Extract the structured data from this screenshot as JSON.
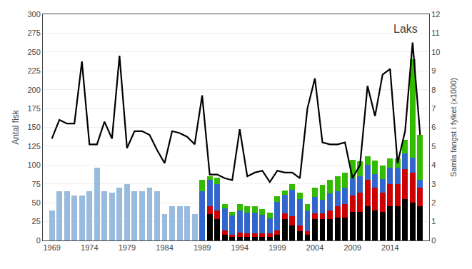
{
  "chart_data": {
    "type": "bar",
    "x": [
      1969,
      1970,
      1971,
      1972,
      1973,
      1974,
      1975,
      1976,
      1977,
      1978,
      1979,
      1980,
      1981,
      1982,
      1983,
      1984,
      1985,
      1986,
      1987,
      1988,
      1989,
      1990,
      1991,
      1992,
      1993,
      1994,
      1995,
      1996,
      1997,
      1998,
      1999,
      2000,
      2001,
      2002,
      2003,
      2004,
      2005,
      2006,
      2007,
      2008,
      2009,
      2010,
      2011,
      2012,
      2013,
      2014,
      2015,
      2016,
      2017,
      2018
    ],
    "series": [
      {
        "color": "#000000",
        "values": [
          0,
          0,
          0,
          0,
          0,
          0,
          0,
          0,
          0,
          0,
          0,
          0,
          0,
          0,
          0,
          0,
          0,
          0,
          0,
          0,
          0,
          35,
          28,
          8,
          5,
          5,
          5,
          5,
          5,
          5,
          8,
          28,
          20,
          12,
          8,
          28,
          28,
          28,
          30,
          30,
          38,
          38,
          45,
          40,
          38,
          45,
          45,
          55,
          50,
          45
        ]
      },
      {
        "color": "#cc0000",
        "values": [
          0,
          0,
          0,
          0,
          0,
          0,
          0,
          0,
          0,
          0,
          0,
          0,
          0,
          0,
          0,
          0,
          0,
          0,
          0,
          0,
          0,
          10,
          12,
          5,
          3,
          5,
          4,
          4,
          4,
          4,
          5,
          8,
          12,
          8,
          4,
          8,
          8,
          12,
          15,
          18,
          22,
          25,
          35,
          30,
          25,
          30,
          30,
          40,
          40,
          25
        ]
      },
      {
        "color": "#3366cc",
        "values": [
          0,
          0,
          0,
          0,
          0,
          0,
          0,
          0,
          0,
          0,
          0,
          0,
          0,
          0,
          0,
          0,
          0,
          0,
          0,
          0,
          65,
          35,
          35,
          30,
          25,
          30,
          28,
          28,
          25,
          20,
          38,
          25,
          35,
          35,
          28,
          22,
          18,
          22,
          20,
          22,
          22,
          22,
          20,
          18,
          18,
          22,
          22,
          20,
          20,
          10
        ]
      },
      {
        "color": "#99bbdd",
        "values": [
          40,
          65,
          65,
          60,
          60,
          65,
          97,
          65,
          63,
          70,
          75,
          65,
          65,
          70,
          65,
          35,
          45,
          45,
          45,
          35,
          0,
          0,
          0,
          0,
          0,
          0,
          0,
          0,
          0,
          0,
          0,
          0,
          0,
          0,
          0,
          0,
          0,
          0,
          0,
          0,
          0,
          0,
          0,
          0,
          0,
          0,
          0,
          0,
          0,
          0
        ]
      },
      {
        "color": "#33bb00",
        "values": [
          0,
          0,
          0,
          0,
          0,
          0,
          0,
          0,
          0,
          0,
          0,
          0,
          0,
          0,
          0,
          0,
          0,
          0,
          0,
          0,
          15,
          5,
          8,
          5,
          5,
          8,
          8,
          8,
          8,
          8,
          8,
          5,
          8,
          8,
          8,
          12,
          20,
          18,
          20,
          20,
          25,
          20,
          12,
          18,
          18,
          12,
          12,
          18,
          130,
          60
        ]
      },
      {
        "type": "line",
        "axis": "y2",
        "color": "#000000",
        "values": [
          5.4,
          6.4,
          6.2,
          6.2,
          9.5,
          5.1,
          5.1,
          6.3,
          5.4,
          9.8,
          4.9,
          5.8,
          5.8,
          5.6,
          4.8,
          4.1,
          5.8,
          5.7,
          5.5,
          5.1,
          7.7,
          3.5,
          3.5,
          3.3,
          3.2,
          5.9,
          3.4,
          3.6,
          3.7,
          3.1,
          3.7,
          3.6,
          3.6,
          3.3,
          7.0,
          8.6,
          5.2,
          5.1,
          5.1,
          5.2,
          3.3,
          4.0,
          8.2,
          6.6,
          8.8,
          9.1,
          4.1,
          5.8,
          10.5,
          5.6
        ]
      }
    ],
    "xlim": [
      1967.8,
      2019.2
    ],
    "xticks": [
      1969,
      1974,
      1979,
      1984,
      1989,
      1994,
      1999,
      2004,
      2009,
      2014
    ],
    "ylim": [
      0,
      300
    ],
    "yticks": [
      0,
      25,
      50,
      75,
      100,
      125,
      150,
      175,
      200,
      225,
      250,
      275,
      300
    ],
    "y2lim": [
      0,
      12
    ],
    "y2ticks": [
      0,
      1,
      2,
      3,
      4,
      5,
      6,
      7,
      8,
      9,
      10,
      11,
      12
    ],
    "ylabel": "Antal fisk",
    "y2label": "Samla fangst i fylket (x1000)",
    "annotation": "Laks",
    "stacked": true,
    "grid": true
  }
}
